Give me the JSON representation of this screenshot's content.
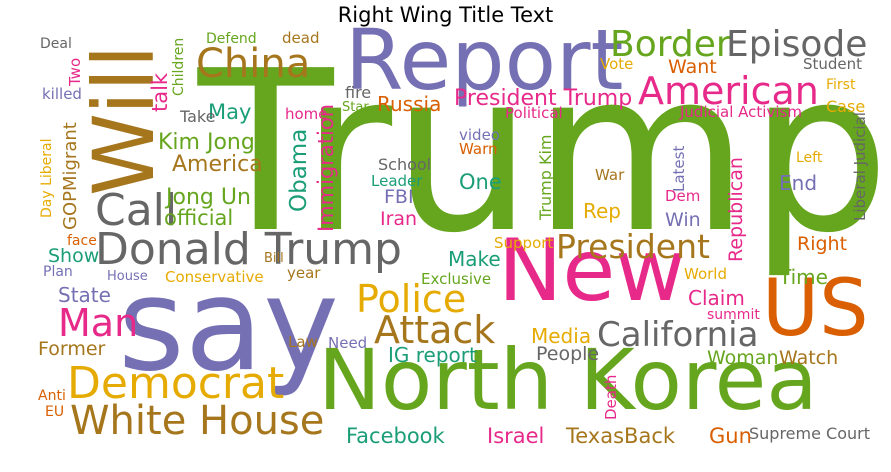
{
  "title": "Right Wing Title Text",
  "colors": {
    "green": "#66A61E",
    "purple": "#7570B3",
    "pink": "#E7298A",
    "orange": "#D95F02",
    "teal": "#1B9E77",
    "gold": "#E6AB02",
    "brown": "#A6761D",
    "gray": "#666666"
  },
  "words": [
    {
      "text": "Trump",
      "color": "green"
    },
    {
      "text": "say",
      "color": "purple"
    },
    {
      "text": "Will",
      "color": "brown"
    },
    {
      "text": "Report",
      "color": "purple"
    },
    {
      "text": "New",
      "color": "pink"
    },
    {
      "text": "North Korea",
      "color": "green"
    },
    {
      "text": "US",
      "color": "orange"
    },
    {
      "text": "Donald Trump",
      "color": "gray"
    },
    {
      "text": "Democrat",
      "color": "gold"
    },
    {
      "text": "White House",
      "color": "brown"
    },
    {
      "text": "China",
      "color": "brown"
    },
    {
      "text": "Border",
      "color": "green"
    },
    {
      "text": "Episode",
      "color": "gray"
    },
    {
      "text": "American",
      "color": "pink"
    },
    {
      "text": "President",
      "color": "brown"
    },
    {
      "text": "Police",
      "color": "gold"
    },
    {
      "text": "Attack",
      "color": "brown"
    },
    {
      "text": "California",
      "color": "gray"
    },
    {
      "text": "Call",
      "color": "gray"
    },
    {
      "text": "Man",
      "color": "pink"
    },
    {
      "text": "President Trump",
      "color": "pink"
    },
    {
      "text": "Russia",
      "color": "orange"
    },
    {
      "text": "Want",
      "color": "orange"
    },
    {
      "text": "Kim Jong",
      "color": "green"
    },
    {
      "text": "America",
      "color": "brown"
    },
    {
      "text": "Jong Un",
      "color": "green"
    },
    {
      "text": "official",
      "color": "green"
    },
    {
      "text": "Obama",
      "color": "teal"
    },
    {
      "text": "Immigration",
      "color": "pink"
    },
    {
      "text": "talk",
      "color": "pink"
    },
    {
      "text": "May",
      "color": "teal"
    },
    {
      "text": "Take",
      "color": "gray"
    },
    {
      "text": "fire",
      "color": "gray"
    },
    {
      "text": "Star",
      "color": "green"
    },
    {
      "text": "home",
      "color": "pink"
    },
    {
      "text": "Political",
      "color": "pink"
    },
    {
      "text": "Judicial Activism",
      "color": "pink"
    },
    {
      "text": "Vote",
      "color": "gold"
    },
    {
      "text": "Student",
      "color": "gray"
    },
    {
      "text": "First",
      "color": "gold"
    },
    {
      "text": "Case",
      "color": "gold"
    },
    {
      "text": "Liberal Judicial",
      "color": "gray"
    },
    {
      "text": "Left",
      "color": "gold"
    },
    {
      "text": "End",
      "color": "purple"
    },
    {
      "text": "Right",
      "color": "orange"
    },
    {
      "text": "Time",
      "color": "green"
    },
    {
      "text": "Republican",
      "color": "pink"
    },
    {
      "text": "Latest",
      "color": "purple"
    },
    {
      "text": "Dem",
      "color": "pink"
    },
    {
      "text": "Win",
      "color": "purple"
    },
    {
      "text": "War",
      "color": "brown"
    },
    {
      "text": "Rep",
      "color": "gold"
    },
    {
      "text": "One",
      "color": "teal"
    },
    {
      "text": "video",
      "color": "purple"
    },
    {
      "text": "Warn",
      "color": "orange"
    },
    {
      "text": "School",
      "color": "gray"
    },
    {
      "text": "Leader",
      "color": "teal"
    },
    {
      "text": "FBI",
      "color": "purple"
    },
    {
      "text": "Iran",
      "color": "pink"
    },
    {
      "text": "Trump Kim",
      "color": "green"
    },
    {
      "text": "Support",
      "color": "gold"
    },
    {
      "text": "Make",
      "color": "teal"
    },
    {
      "text": "Exclusive",
      "color": "green"
    },
    {
      "text": "World",
      "color": "gold"
    },
    {
      "text": "Claim",
      "color": "pink"
    },
    {
      "text": "summit",
      "color": "pink"
    },
    {
      "text": "Media",
      "color": "gold"
    },
    {
      "text": "IG report",
      "color": "teal"
    },
    {
      "text": "People",
      "color": "gray"
    },
    {
      "text": "Woman",
      "color": "green"
    },
    {
      "text": "Watch",
      "color": "brown"
    },
    {
      "text": "Facebook",
      "color": "teal"
    },
    {
      "text": "Israel",
      "color": "pink"
    },
    {
      "text": "TexasBack",
      "color": "brown"
    },
    {
      "text": "Gun",
      "color": "orange"
    },
    {
      "text": "Supreme Court",
      "color": "gray"
    },
    {
      "text": "Death",
      "color": "pink"
    },
    {
      "text": "Need",
      "color": "purple"
    },
    {
      "text": "Law",
      "color": "brown"
    },
    {
      "text": "Former",
      "color": "brown"
    },
    {
      "text": "Anti",
      "color": "orange"
    },
    {
      "text": "EU",
      "color": "orange"
    },
    {
      "text": "State",
      "color": "purple"
    },
    {
      "text": "Plan",
      "color": "purple"
    },
    {
      "text": "House",
      "color": "purple"
    },
    {
      "text": "Conservative",
      "color": "gold"
    },
    {
      "text": "year",
      "color": "brown"
    },
    {
      "text": "Bill",
      "color": "brown"
    },
    {
      "text": "Show",
      "color": "teal"
    },
    {
      "text": "face",
      "color": "orange"
    },
    {
      "text": "GOPMigrant",
      "color": "brown"
    },
    {
      "text": "Day Liberal",
      "color": "gold"
    },
    {
      "text": "Deal",
      "color": "gray"
    },
    {
      "text": "Two",
      "color": "pink"
    },
    {
      "text": "killed",
      "color": "purple"
    },
    {
      "text": "Children",
      "color": "green"
    },
    {
      "text": "Defend",
      "color": "green"
    },
    {
      "text": "dead",
      "color": "brown"
    }
  ]
}
